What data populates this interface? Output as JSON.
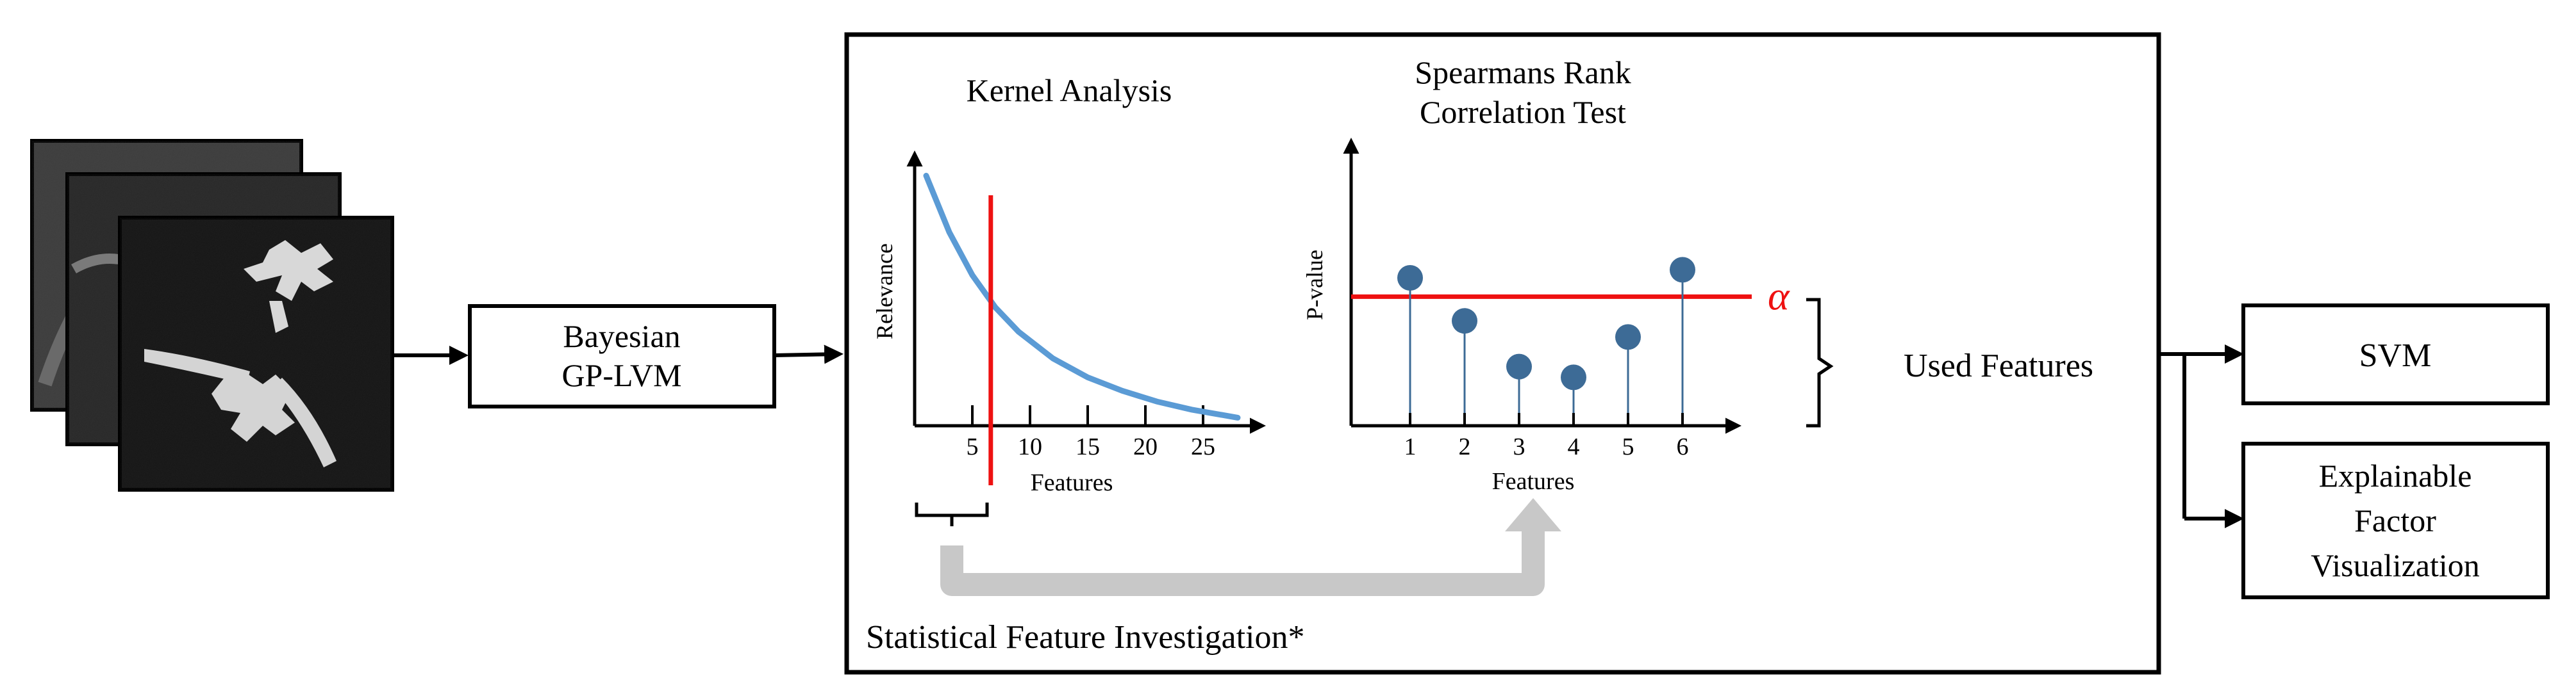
{
  "blocks": {
    "gplvm": [
      "Bayesian",
      "GP-LVM"
    ],
    "svm": "SVM",
    "explainable": [
      "Explainable",
      "Factor",
      "Visualization"
    ]
  },
  "investigation": {
    "label": "Statistical Feature Investigation*",
    "kernel": {
      "title": "Kernel Analysis",
      "ylabel": "Relevance",
      "xlabel": "Features",
      "ticks": [
        "5",
        "10",
        "15",
        "20",
        "25"
      ]
    },
    "spearman": {
      "title": [
        "Spearmans Rank",
        "Correlation Test"
      ],
      "ylabel": "P-value",
      "xlabel": "Features",
      "ticks": [
        "1",
        "2",
        "3",
        "4",
        "5",
        "6"
      ],
      "alpha_symbol": "α"
    },
    "used_features": "Used Features"
  },
  "chart_data": [
    {
      "type": "line",
      "title": "Kernel Analysis",
      "xlabel": "Features",
      "ylabel": "Relevance",
      "xlim": [
        0,
        30
      ],
      "ylim": [
        0,
        1
      ],
      "x_ticks": [
        5,
        10,
        15,
        20,
        25
      ],
      "series": [
        {
          "name": "relevance",
          "x": [
            1,
            3,
            5,
            7,
            9,
            12,
            15,
            18,
            21,
            24,
            28
          ],
          "y": [
            0.93,
            0.72,
            0.56,
            0.44,
            0.35,
            0.25,
            0.18,
            0.13,
            0.09,
            0.06,
            0.03
          ]
        }
      ],
      "cutoff_x": 6.6
    },
    {
      "type": "scatter",
      "title": "Spearmans Rank Correlation Test",
      "xlabel": "Features",
      "ylabel": "P-value",
      "categories": [
        "1",
        "2",
        "3",
        "4",
        "5",
        "6"
      ],
      "values": [
        0.55,
        0.39,
        0.22,
        0.18,
        0.33,
        0.58
      ],
      "ylim": [
        0,
        1
      ],
      "alpha": 0.48
    }
  ],
  "colors": {
    "curve": "#5b9bd5",
    "cutoff": "#ee1111",
    "stem": "#3d6b96",
    "marker": "#3d6b96",
    "flow_arrow": "#c8c8c8"
  }
}
